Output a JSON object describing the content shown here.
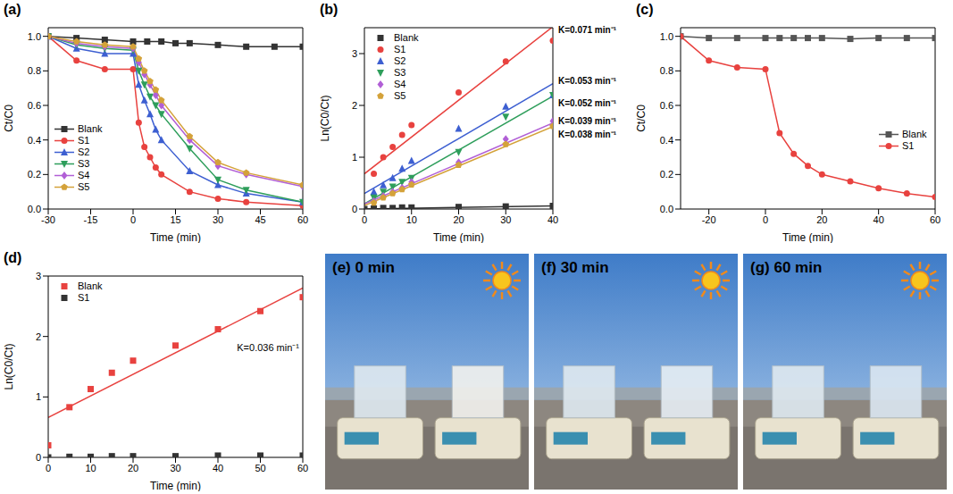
{
  "chart_data": [
    {
      "panel": "(a)",
      "type": "line",
      "xlabel": "Time (min)",
      "ylabel": "Ct/C0",
      "xlim": [
        -30,
        60
      ],
      "xticks": [
        -30,
        -15,
        0,
        15,
        30,
        45,
        60
      ],
      "ylim": [
        0,
        1.05
      ],
      "yticks": [
        {
          "value": 0,
          "label": "0.0"
        },
        0.2,
        0.4,
        0.6,
        0.8,
        {
          "value": 1,
          "label": "1.0"
        }
      ],
      "legend": "lower left",
      "series": [
        {
          "name": "Blank",
          "color": "#333333",
          "marker": "square",
          "x": [
            -30,
            -20,
            -10,
            0,
            5,
            10,
            15,
            20,
            30,
            40,
            50,
            60
          ],
          "values": [
            1.0,
            0.99,
            0.98,
            0.97,
            0.97,
            0.97,
            0.96,
            0.96,
            0.95,
            0.94,
            0.94,
            0.94
          ]
        },
        {
          "name": "S1",
          "color": "#e8423f",
          "marker": "circle",
          "x": [
            -30,
            -20,
            -10,
            0,
            2,
            4,
            6,
            8,
            10,
            20,
            30,
            40,
            60
          ],
          "values": [
            1.0,
            0.86,
            0.81,
            0.81,
            0.5,
            0.36,
            0.3,
            0.24,
            0.2,
            0.1,
            0.06,
            0.04,
            0.02
          ]
        },
        {
          "name": "S2",
          "color": "#3d5fd1",
          "marker": "triangle",
          "x": [
            -30,
            -20,
            -10,
            0,
            2,
            4,
            6,
            8,
            10,
            20,
            30,
            40,
            60
          ],
          "values": [
            1.0,
            0.93,
            0.9,
            0.9,
            0.72,
            0.63,
            0.55,
            0.46,
            0.4,
            0.22,
            0.14,
            0.09,
            0.04
          ]
        },
        {
          "name": "S3",
          "color": "#2e9e5b",
          "marker": "triangle-down",
          "x": [
            -30,
            -20,
            -10,
            0,
            2,
            4,
            6,
            8,
            10,
            20,
            30,
            40,
            60
          ],
          "values": [
            1.0,
            0.95,
            0.93,
            0.92,
            0.8,
            0.72,
            0.65,
            0.6,
            0.55,
            0.35,
            0.17,
            0.11,
            0.04
          ]
        },
        {
          "name": "S4",
          "color": "#b15fd6",
          "marker": "diamond",
          "x": [
            -30,
            -20,
            -10,
            0,
            2,
            4,
            6,
            8,
            10,
            20,
            30,
            40,
            60
          ],
          "values": [
            1.0,
            0.96,
            0.94,
            0.93,
            0.85,
            0.78,
            0.72,
            0.66,
            0.6,
            0.4,
            0.25,
            0.2,
            0.13
          ]
        },
        {
          "name": "S5",
          "color": "#d4a23a",
          "marker": "pentagon",
          "x": [
            -30,
            -20,
            -10,
            0,
            2,
            4,
            6,
            8,
            10,
            20,
            30,
            40,
            60
          ],
          "values": [
            1.0,
            0.97,
            0.95,
            0.94,
            0.87,
            0.8,
            0.74,
            0.69,
            0.63,
            0.42,
            0.27,
            0.21,
            0.14
          ]
        }
      ]
    },
    {
      "panel": "(b)",
      "type": "scatter",
      "xlabel": "Time (min)",
      "ylabel": "Ln(C0/Ct)",
      "xlim": [
        0,
        40
      ],
      "xticks": [
        0,
        10,
        20,
        30,
        40
      ],
      "ylim": [
        0,
        3.5
      ],
      "yticks": [
        0,
        1,
        2,
        3
      ],
      "legend": "upper left",
      "series": [
        {
          "name": "Blank",
          "color": "#333333",
          "marker": "square",
          "x": [
            0,
            2,
            4,
            6,
            8,
            10,
            20,
            30,
            40
          ],
          "values": [
            0,
            0.01,
            0.02,
            0.02,
            0.03,
            0.03,
            0.04,
            0.05,
            0.06
          ],
          "fit": {
            "x": [
              0,
              40
            ],
            "values": [
              0,
              0.06
            ]
          }
        },
        {
          "name": "S1",
          "color": "#e8423f",
          "marker": "circle",
          "x": [
            2,
            4,
            6,
            8,
            10,
            20,
            30,
            40
          ],
          "values": [
            0.68,
            1.0,
            1.2,
            1.43,
            1.62,
            2.25,
            2.85,
            3.25
          ],
          "fit": {
            "x": [
              0,
              40
            ],
            "values": [
              0.68,
              3.52
            ]
          },
          "label": "K=0.071 min⁻¹"
        },
        {
          "name": "S2",
          "color": "#3d5fd1",
          "marker": "triangle",
          "x": [
            2,
            4,
            6,
            8,
            10,
            20,
            30,
            40
          ],
          "values": [
            0.33,
            0.46,
            0.6,
            0.78,
            0.93,
            1.55,
            1.98,
            2.2
          ],
          "fit": {
            "x": [
              0,
              40
            ],
            "values": [
              0.3,
              2.42
            ]
          },
          "label": "K=0.053 min⁻¹"
        },
        {
          "name": "S3",
          "color": "#2e9e5b",
          "marker": "triangle-down",
          "x": [
            2,
            4,
            6,
            8,
            10,
            20,
            30,
            40
          ],
          "values": [
            0.22,
            0.33,
            0.43,
            0.52,
            0.6,
            1.1,
            1.78,
            2.2
          ],
          "fit": {
            "x": [
              0,
              40
            ],
            "values": [
              0.1,
              2.18
            ]
          },
          "label": "K=0.052 min⁻¹"
        },
        {
          "name": "S4",
          "color": "#b15fd6",
          "marker": "diamond",
          "x": [
            2,
            4,
            6,
            8,
            10,
            20,
            30,
            40
          ],
          "values": [
            0.15,
            0.25,
            0.33,
            0.41,
            0.52,
            0.9,
            1.35,
            1.7
          ],
          "fit": {
            "x": [
              0,
              40
            ],
            "values": [
              0.1,
              1.66
            ]
          },
          "label": "K=0.039 min⁻¹"
        },
        {
          "name": "S5",
          "color": "#d4a23a",
          "marker": "pentagon",
          "x": [
            2,
            4,
            6,
            8,
            10,
            20,
            30,
            40
          ],
          "values": [
            0.12,
            0.22,
            0.3,
            0.38,
            0.47,
            0.85,
            1.25,
            1.6
          ],
          "fit": {
            "x": [
              0,
              40
            ],
            "values": [
              0.07,
              1.59
            ]
          },
          "label": "K=0.038 min⁻¹"
        }
      ]
    },
    {
      "panel": "(c)",
      "type": "line",
      "xlabel": "Time (min)",
      "ylabel": "Ct/C0",
      "xlim": [
        -30,
        60
      ],
      "xticks": [
        -20,
        0,
        20,
        40,
        60
      ],
      "ylim": [
        0,
        1.05
      ],
      "yticks": [
        {
          "value": 0,
          "label": "0.0"
        },
        0.2,
        0.4,
        0.6,
        0.8,
        {
          "value": 1,
          "label": "1.0"
        }
      ],
      "legend": "lower right",
      "series": [
        {
          "name": "Blank",
          "color": "#555555",
          "marker": "square",
          "x": [
            -30,
            -20,
            -10,
            0,
            5,
            10,
            15,
            20,
            30,
            40,
            50,
            60
          ],
          "values": [
            1.0,
            0.99,
            0.99,
            0.99,
            0.99,
            0.99,
            0.99,
            0.99,
            0.985,
            0.99,
            0.99,
            0.99
          ]
        },
        {
          "name": "S1",
          "color": "#e8423f",
          "marker": "circle",
          "x": [
            -30,
            -20,
            -10,
            0,
            5,
            10,
            15,
            20,
            30,
            40,
            50,
            60
          ],
          "values": [
            1.0,
            0.86,
            0.82,
            0.81,
            0.44,
            0.32,
            0.25,
            0.2,
            0.16,
            0.12,
            0.09,
            0.07
          ]
        }
      ]
    },
    {
      "panel": "(d)",
      "type": "scatter",
      "xlabel": "Time (min)",
      "ylabel": "Ln(C0/Ct)",
      "xlim": [
        0,
        60
      ],
      "xticks": [
        0,
        10,
        20,
        30,
        40,
        50,
        60
      ],
      "ylim": [
        0,
        3
      ],
      "yticks": [
        0,
        1,
        2,
        3
      ],
      "legend": "upper left",
      "series": [
        {
          "name": "Blank",
          "color": "#e8423f",
          "marker": "square",
          "x": [
            0,
            5,
            10,
            15,
            20,
            30,
            40,
            50,
            60
          ],
          "values": [
            0.2,
            0.83,
            1.13,
            1.4,
            1.6,
            1.85,
            2.12,
            2.42,
            2.65
          ],
          "fit": {
            "x": [
              0,
              60
            ],
            "values": [
              0.66,
              2.8
            ]
          },
          "label": "K=0.036 min⁻¹"
        },
        {
          "name": "S1",
          "color": "#333333",
          "marker": "square",
          "x": [
            0,
            5,
            10,
            15,
            20,
            30,
            40,
            50,
            60
          ],
          "values": [
            0,
            0.01,
            0.01,
            0.02,
            0.02,
            0.02,
            0.03,
            0.03,
            0.03
          ]
        }
      ]
    }
  ],
  "photos": [
    {
      "panel": "(e)",
      "time": "0 min"
    },
    {
      "panel": "(f)",
      "time": "30 min"
    },
    {
      "panel": "(g)",
      "time": "60 min"
    }
  ]
}
